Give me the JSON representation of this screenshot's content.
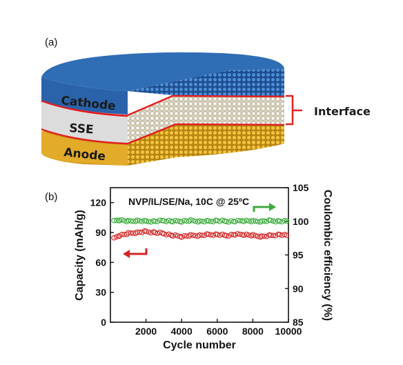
{
  "panel_a": {
    "label": "(a)",
    "layers": [
      "Cathode",
      "SSE",
      "Anode"
    ],
    "interface_label": "Interface",
    "colors": {
      "cathode": "#2f6db5",
      "sse": "#d9d9d9",
      "anode": "#e0a824",
      "interface_line": "#e02020"
    }
  },
  "panel_b": {
    "label": "(b)"
  },
  "chart_data": {
    "type": "scatter",
    "title": "NVP/IL/SE/Na, 10C @ 25ºC",
    "xlabel": "Cycle number",
    "ylabel_left": "Capacity (mAh/g)",
    "ylabel_right": "Coulombic efficiency (%)",
    "xlim": [
      0,
      10000
    ],
    "ylim_left": [
      0,
      135
    ],
    "ylim_right": [
      85,
      105
    ],
    "x_ticks": [
      "2000",
      "4000",
      "6000",
      "8000",
      "10000"
    ],
    "y_ticks_left": [
      "0",
      "30",
      "60",
      "90",
      "120"
    ],
    "y_ticks_right": [
      "85",
      "90",
      "95",
      "100",
      "105"
    ],
    "series": [
      {
        "axis": "left",
        "color": "#d42424",
        "x": [
          200,
          500,
          1000,
          1500,
          2000,
          2500,
          3000,
          3500,
          4000,
          4500,
          5000,
          5500,
          6000,
          6500,
          7000,
          7500,
          8000,
          8500,
          9000,
          9500,
          9900
        ],
        "y": [
          84,
          87,
          89,
          90,
          91,
          90,
          89,
          87,
          86,
          87,
          87,
          88,
          88,
          87,
          88,
          88,
          87,
          86,
          87,
          88,
          87
        ]
      },
      {
        "axis": "right",
        "color": "#3cab3c",
        "x": [
          200,
          500,
          1000,
          1500,
          2000,
          2500,
          3000,
          3500,
          4000,
          4500,
          5000,
          5500,
          6000,
          6500,
          7000,
          7500,
          8000,
          8500,
          9000,
          9500,
          9900
        ],
        "y": [
          100.0,
          100.2,
          100.0,
          100.1,
          100.0,
          100.0,
          100.1,
          100.0,
          100.0,
          100.1,
          100.0,
          100.0,
          100.1,
          100.0,
          100.0,
          100.1,
          100.0,
          100.0,
          100.1,
          100.0,
          100.0
        ]
      }
    ],
    "grid": false
  }
}
